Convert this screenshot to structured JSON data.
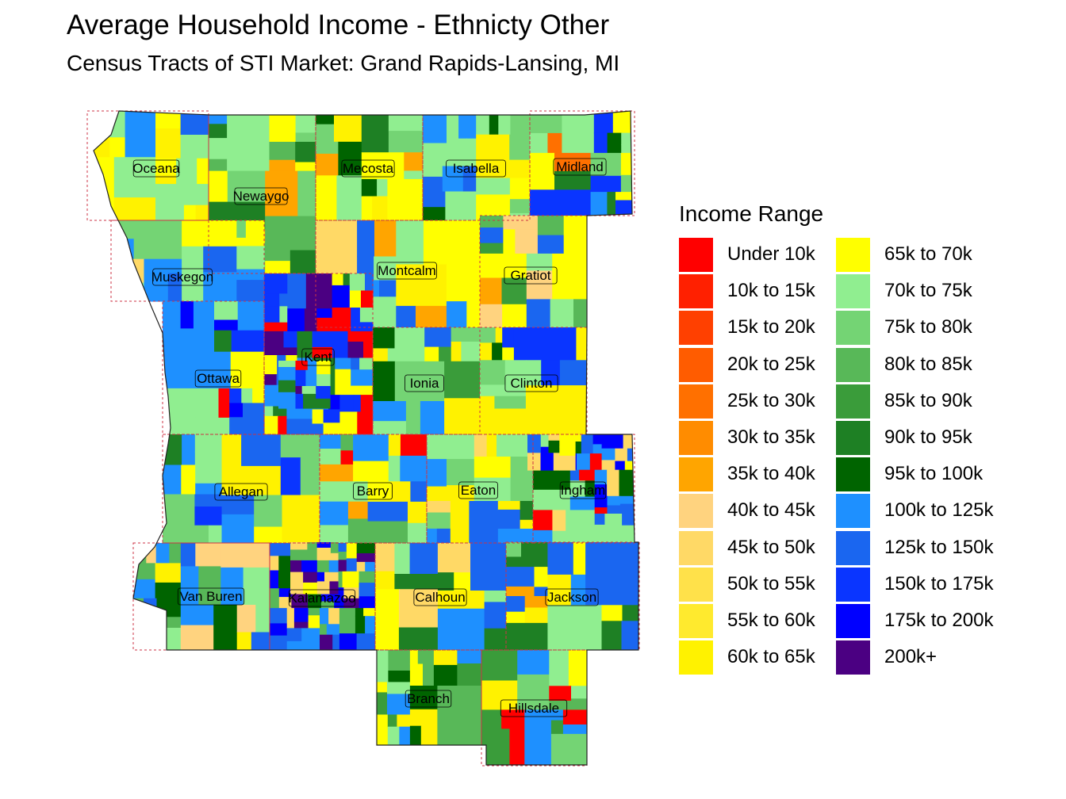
{
  "title": "Average Household Income - Ethnicty Other",
  "subtitle": "Census Tracts of STI Market: Grand Rapids-Lansing, MI",
  "legend": {
    "title": "Income Range",
    "items": [
      {
        "label": "Under 10k",
        "color": "#FF0000"
      },
      {
        "label": "10k to 15k",
        "color": "#FF2000"
      },
      {
        "label": "15k to 20k",
        "color": "#FF4000"
      },
      {
        "label": "20k to 25k",
        "color": "#FF5C00"
      },
      {
        "label": "25k to 30k",
        "color": "#FF7000"
      },
      {
        "label": "30k to 35k",
        "color": "#FF8C00"
      },
      {
        "label": "35k to 40k",
        "color": "#FFA500"
      },
      {
        "label": "40k to 45k",
        "color": "#FFD37F"
      },
      {
        "label": "45k to 50k",
        "color": "#FFD966"
      },
      {
        "label": "50k to 55k",
        "color": "#FFE14A"
      },
      {
        "label": "55k to 60k",
        "color": "#FFEA2E"
      },
      {
        "label": "60k to 65k",
        "color": "#FFF200"
      },
      {
        "label": "65k to 70k",
        "color": "#FFFF00"
      },
      {
        "label": "70k to 75k",
        "color": "#90EE90"
      },
      {
        "label": "75k to 80k",
        "color": "#74D474"
      },
      {
        "label": "80k to 85k",
        "color": "#58B858"
      },
      {
        "label": "85k to 90k",
        "color": "#3A9C3A"
      },
      {
        "label": "90k to 95k",
        "color": "#1E8024"
      },
      {
        "label": "95k to 100k",
        "color": "#006400"
      },
      {
        "label": "100k to 125k",
        "color": "#1E90FF"
      },
      {
        "label": "125k to 150k",
        "color": "#1A66F0"
      },
      {
        "label": "150k to 175k",
        "color": "#0A35FF"
      },
      {
        "label": "175k to 200k",
        "color": "#0000FF"
      },
      {
        "label": "200k+",
        "color": "#4B0082"
      }
    ]
  },
  "map": {
    "counties": [
      {
        "name": "Oceana",
        "color_index": 12
      },
      {
        "name": "Newaygo",
        "color_index": 14
      },
      {
        "name": "Mecosta",
        "color_index": 13
      },
      {
        "name": "Isabella",
        "color_index": 13
      },
      {
        "name": "Midland",
        "color_index": 17
      },
      {
        "name": "Muskegon",
        "color_index": 19
      },
      {
        "name": "Montcalm",
        "color_index": 12
      },
      {
        "name": "Gratiot",
        "color_index": 16
      },
      {
        "name": "Kent",
        "color_index": 19
      },
      {
        "name": "Ottawa",
        "color_index": 19
      },
      {
        "name": "Ionia",
        "color_index": 14
      },
      {
        "name": "Clinton",
        "color_index": 20
      },
      {
        "name": "Allegan",
        "color_index": 19
      },
      {
        "name": "Barry",
        "color_index": 19
      },
      {
        "name": "Eaton",
        "color_index": 19
      },
      {
        "name": "Ingham",
        "color_index": 19
      },
      {
        "name": "Van Buren",
        "color_index": 15
      },
      {
        "name": "Kalamazoo",
        "color_index": 19
      },
      {
        "name": "Calhoun",
        "color_index": 19
      },
      {
        "name": "Jackson",
        "color_index": 12
      },
      {
        "name": "Branch",
        "color_index": 15
      },
      {
        "name": "Hillsdale",
        "color_index": 14
      }
    ]
  }
}
